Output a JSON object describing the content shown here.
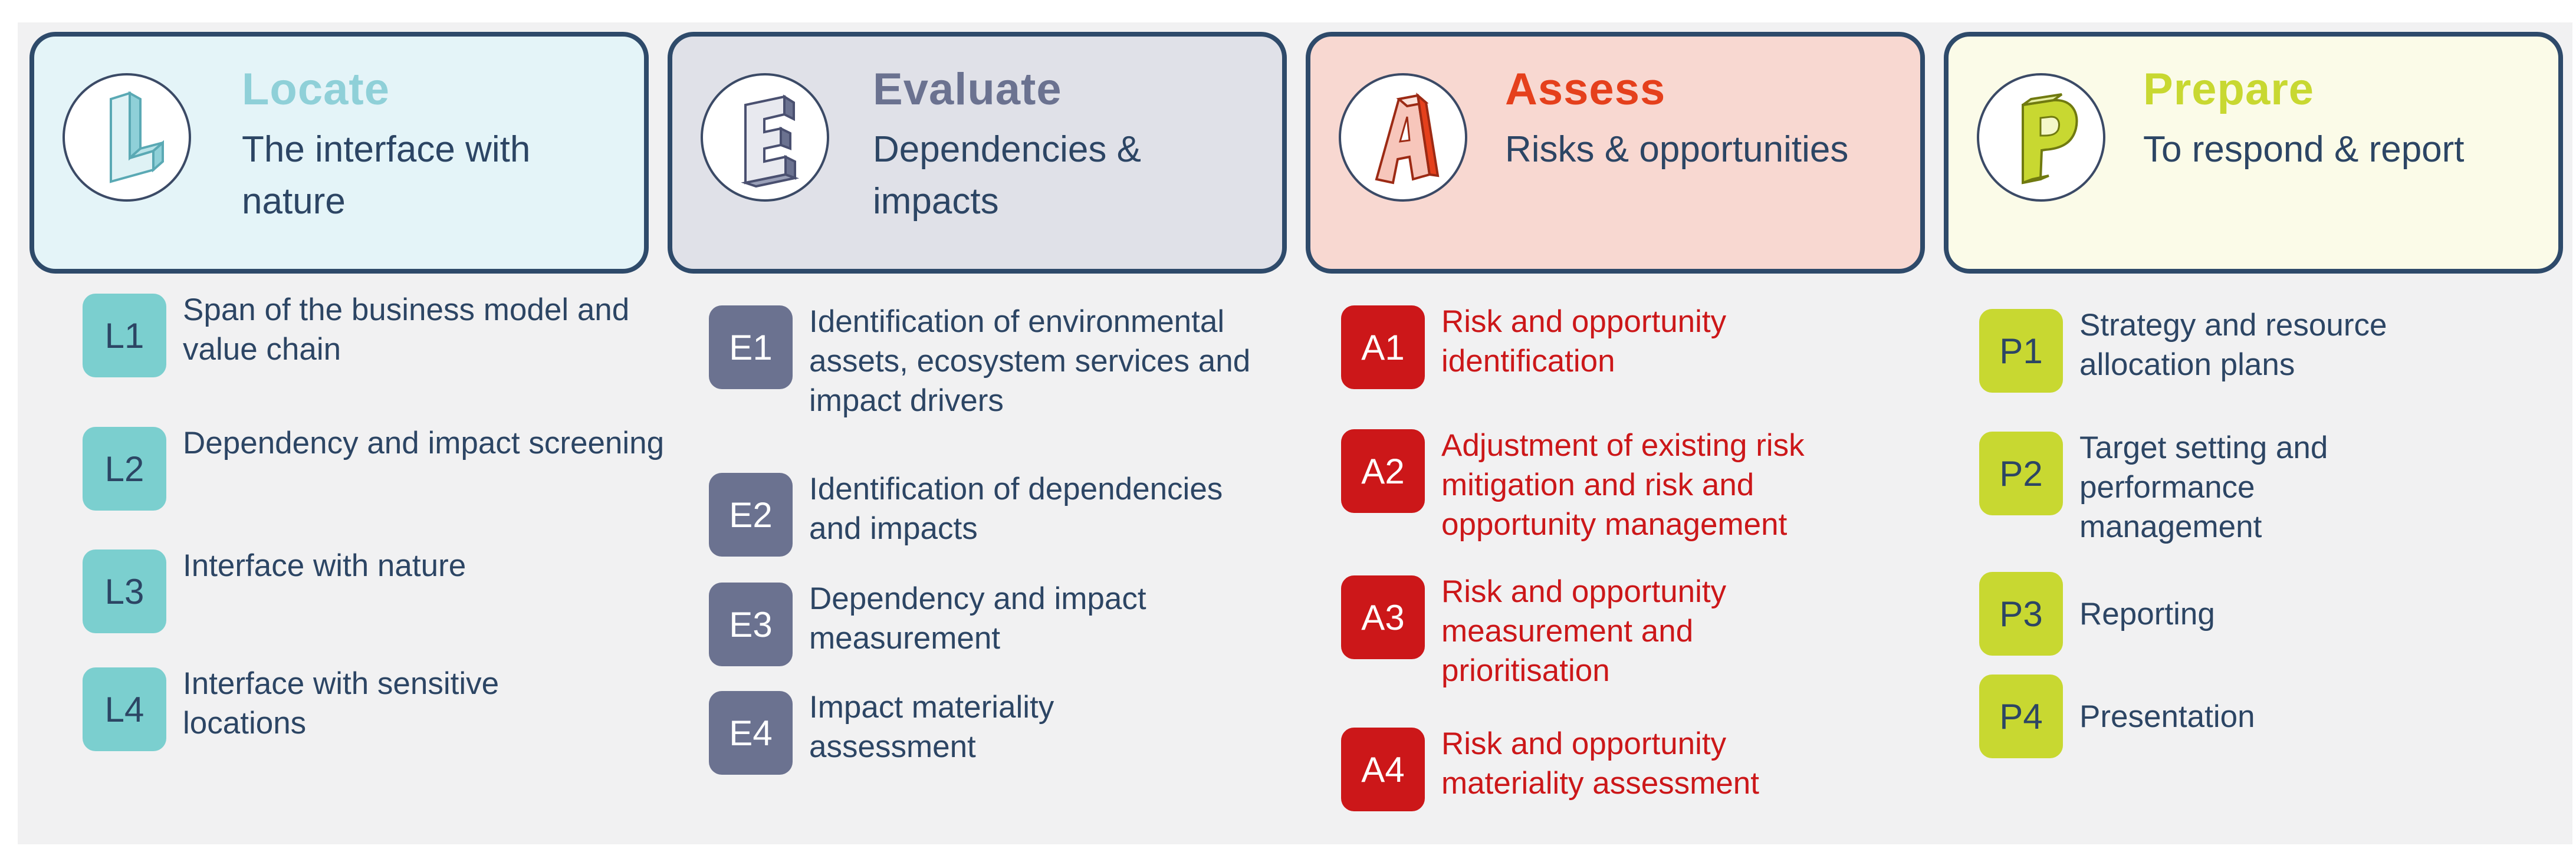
{
  "phases": [
    {
      "code": "L",
      "title": "Locate",
      "subtitle": "The interface with nature",
      "color": "#8fd0d8",
      "steps": [
        {
          "id": "L1",
          "text": "Span of the business model and value chain"
        },
        {
          "id": "L2",
          "text": "Dependency and impact screening"
        },
        {
          "id": "L3",
          "text": "Interface with nature"
        },
        {
          "id": "L4",
          "text": "Interface with sensitive locations"
        }
      ]
    },
    {
      "code": "E",
      "title": "Evaluate",
      "subtitle": "Dependencies & impacts",
      "color": "#6b7290",
      "steps": [
        {
          "id": "E1",
          "text": "Identification of environmental assets, ecosystem services and impact drivers"
        },
        {
          "id": "E2",
          "text": "Identification of dependencies and impacts"
        },
        {
          "id": "E3",
          "text": "Dependency and impact measurement"
        },
        {
          "id": "E4",
          "text": "Impact materiality assessment"
        }
      ]
    },
    {
      "code": "A",
      "title": "Assess",
      "subtitle": "Risks & opportunities",
      "color": "#e5401c",
      "steps": [
        {
          "id": "A1",
          "text": "Risk and opportunity identification"
        },
        {
          "id": "A2",
          "text": "Adjustment of existing risk mitigation and risk and opportunity management"
        },
        {
          "id": "A3",
          "text": "Risk and opportunity measurement and prioritisation"
        },
        {
          "id": "A4",
          "text": "Risk and opportunity materiality assessment"
        }
      ]
    },
    {
      "code": "P",
      "title": "Prepare",
      "subtitle": "To respond & report",
      "color": "#c8d831",
      "steps": [
        {
          "id": "P1",
          "text": "Strategy and resource allocation plans"
        },
        {
          "id": "P2",
          "text": "Target setting and performance management"
        },
        {
          "id": "P3",
          "text": "Reporting"
        },
        {
          "id": "P4",
          "text": "Presentation"
        }
      ]
    }
  ]
}
